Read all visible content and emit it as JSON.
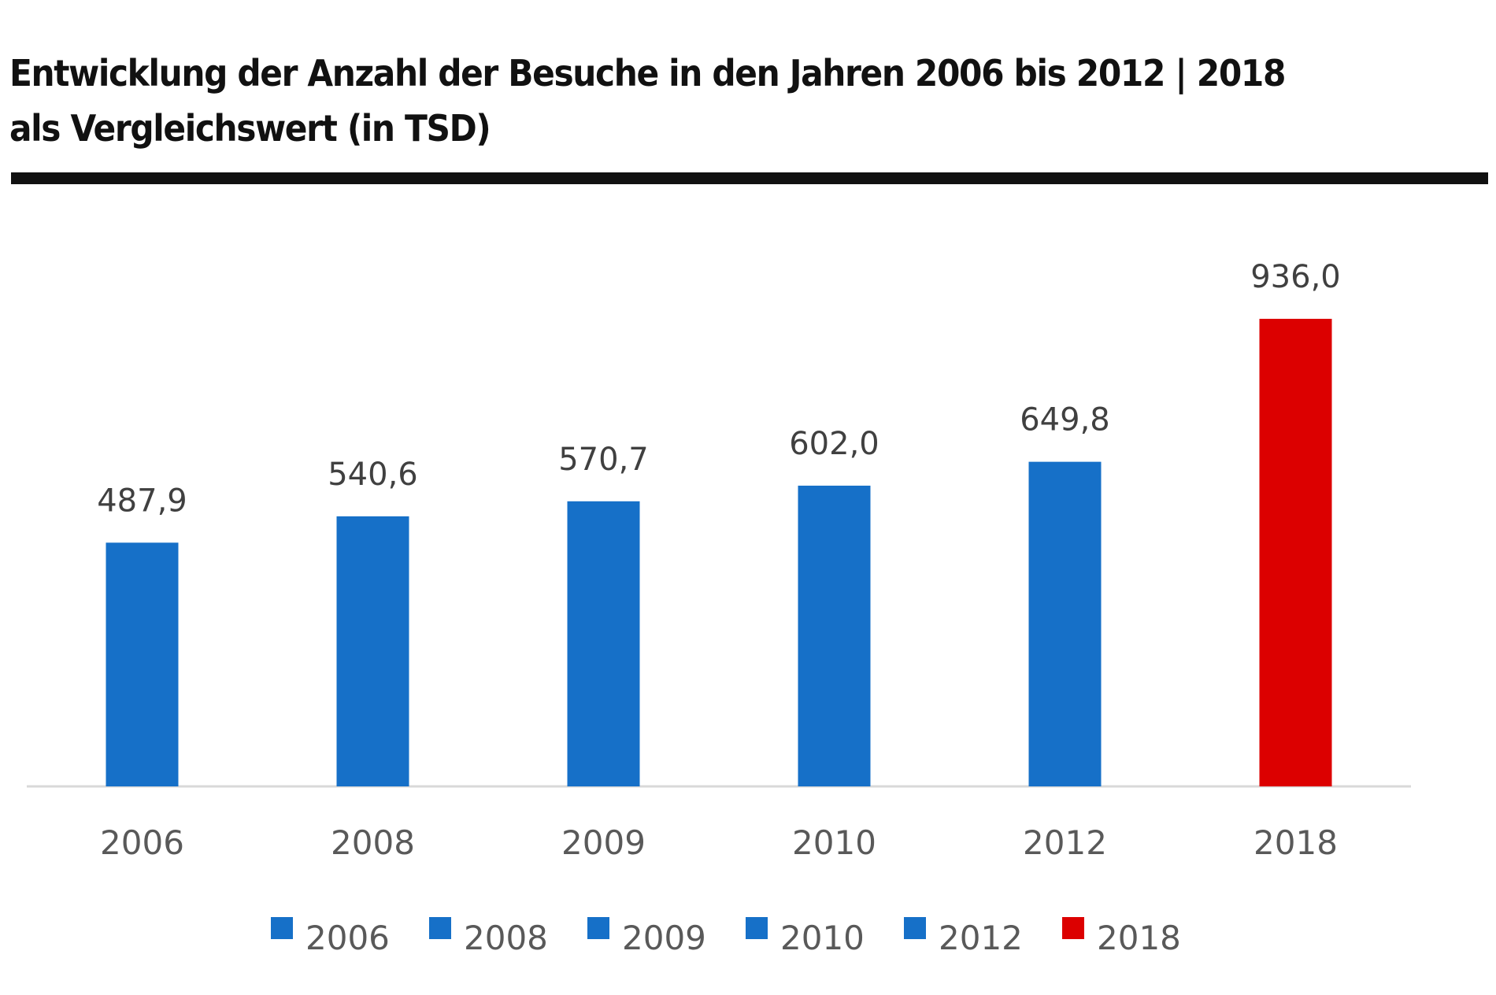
{
  "chart_data": {
    "type": "bar",
    "title": "Entwicklung der Anzahl der Besuche in den Jahren 2006 bis 2012 | 2018 als Vergleichswert (in TSD)",
    "title_lines": [
      "Entwicklung der Anzahl der Besuche in den Jahren 2006 bis 2012 | 2018",
      "als Vergleichswert (in TSD)"
    ],
    "xlabel": "",
    "ylabel": "",
    "categories": [
      "2006",
      "2008",
      "2009",
      "2010",
      "2012",
      "2018"
    ],
    "values": [
      487.9,
      540.6,
      570.7,
      602.0,
      649.8,
      936.0
    ],
    "data_labels": [
      "487,9",
      "540,6",
      "570,7",
      "602,0",
      "649,8",
      "936,0"
    ],
    "colors": [
      "#1670C8",
      "#1670C8",
      "#1670C8",
      "#1670C8",
      "#1670C8",
      "#DC0000"
    ],
    "legend": [
      "2006",
      "2008",
      "2009",
      "2010",
      "2012",
      "2018"
    ],
    "legend_position": "bottom",
    "ylim": [
      0,
      936
    ],
    "grid": false
  }
}
